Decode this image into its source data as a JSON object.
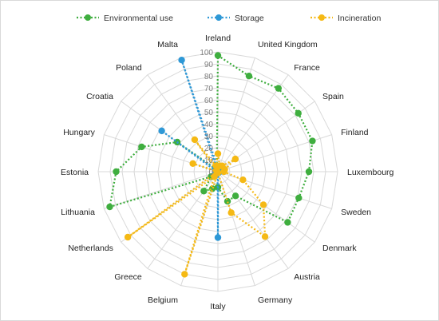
{
  "chart_data": {
    "type": "radar",
    "title": "",
    "legend_position": "top",
    "categories": [
      "Ireland",
      "United Kingdom",
      "France",
      "Spain",
      "Finland",
      "Luxembourg",
      "Sweden",
      "Denmark",
      "Austria",
      "Germany",
      "Italy",
      "Belgium",
      "Greece",
      "Netherlands",
      "Lithuania",
      "Estonia",
      "Hungary",
      "Croatia",
      "Poland",
      "Malta"
    ],
    "radial_ticks": [
      0,
      10,
      20,
      30,
      40,
      50,
      60,
      70,
      80,
      90,
      100
    ],
    "rlim": [
      0,
      100
    ],
    "grid": true,
    "series": [
      {
        "name": "Environmental use",
        "color": "#3fae3f",
        "values": [
          97,
          84,
          86,
          83,
          83,
          76,
          71,
          72,
          25,
          26,
          13,
          15,
          20,
          7,
          95,
          85,
          67,
          42,
          3,
          3
        ]
      },
      {
        "name": "Storage",
        "color": "#2e98d6",
        "values": [
          3,
          3,
          3,
          2,
          2,
          1,
          1,
          1,
          1,
          1,
          55,
          1,
          1,
          1,
          2,
          2,
          2,
          58,
          1,
          98
        ]
      },
      {
        "name": "Incineration",
        "color": "#f5b914",
        "values": [
          15,
          5,
          6,
          18,
          6,
          5,
          22,
          47,
          67,
          36,
          1,
          90,
          5,
          93,
          1,
          1,
          22,
          1,
          33,
          5
        ]
      }
    ]
  }
}
